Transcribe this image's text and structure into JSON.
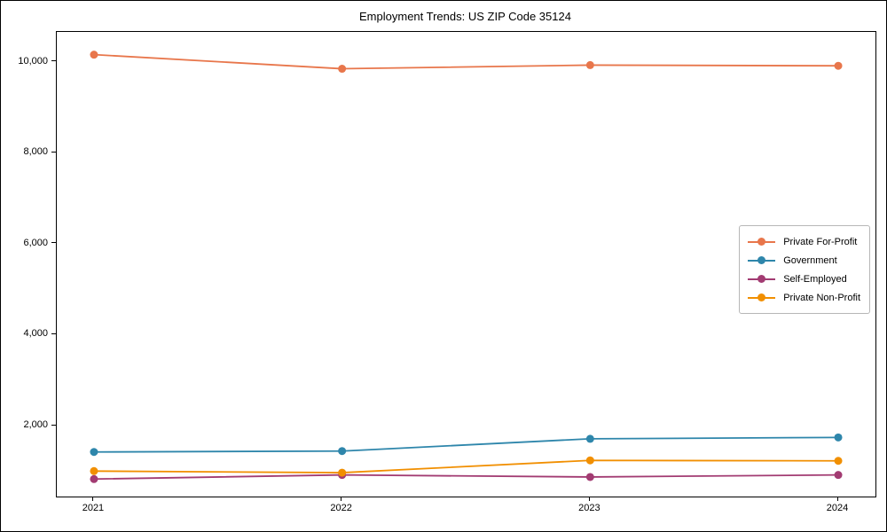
{
  "chart_data": {
    "type": "line",
    "title": "Employment Trends: US ZIP Code 35124",
    "xlabel": "",
    "ylabel": "",
    "x": [
      2021,
      2022,
      2023,
      2024
    ],
    "series": [
      {
        "name": "Private For-Profit",
        "color": "#E8764B",
        "values": [
          10160,
          9850,
          9930,
          9915
        ]
      },
      {
        "name": "Government",
        "color": "#2E86AB",
        "values": [
          1420,
          1440,
          1710,
          1740
        ]
      },
      {
        "name": "Self-Employed",
        "color": "#A23B72",
        "values": [
          825,
          915,
          870,
          915
        ]
      },
      {
        "name": "Private Non-Profit",
        "color": "#F18F01",
        "values": [
          1000,
          965,
          1235,
          1225
        ]
      }
    ],
    "xticks": [
      2021,
      2022,
      2023,
      2024
    ],
    "yticks": [
      2000,
      4000,
      6000,
      8000,
      10000
    ],
    "ytick_labels": [
      "2,000",
      "4,000",
      "6,000",
      "8,000",
      "10,000"
    ],
    "xlim": [
      2020.85,
      2024.15
    ],
    "ylim": [
      440,
      10660
    ],
    "grid": false,
    "legend_position": "center-right",
    "marker": "circle",
    "line_width": 1.8,
    "marker_radius": 4.5
  }
}
